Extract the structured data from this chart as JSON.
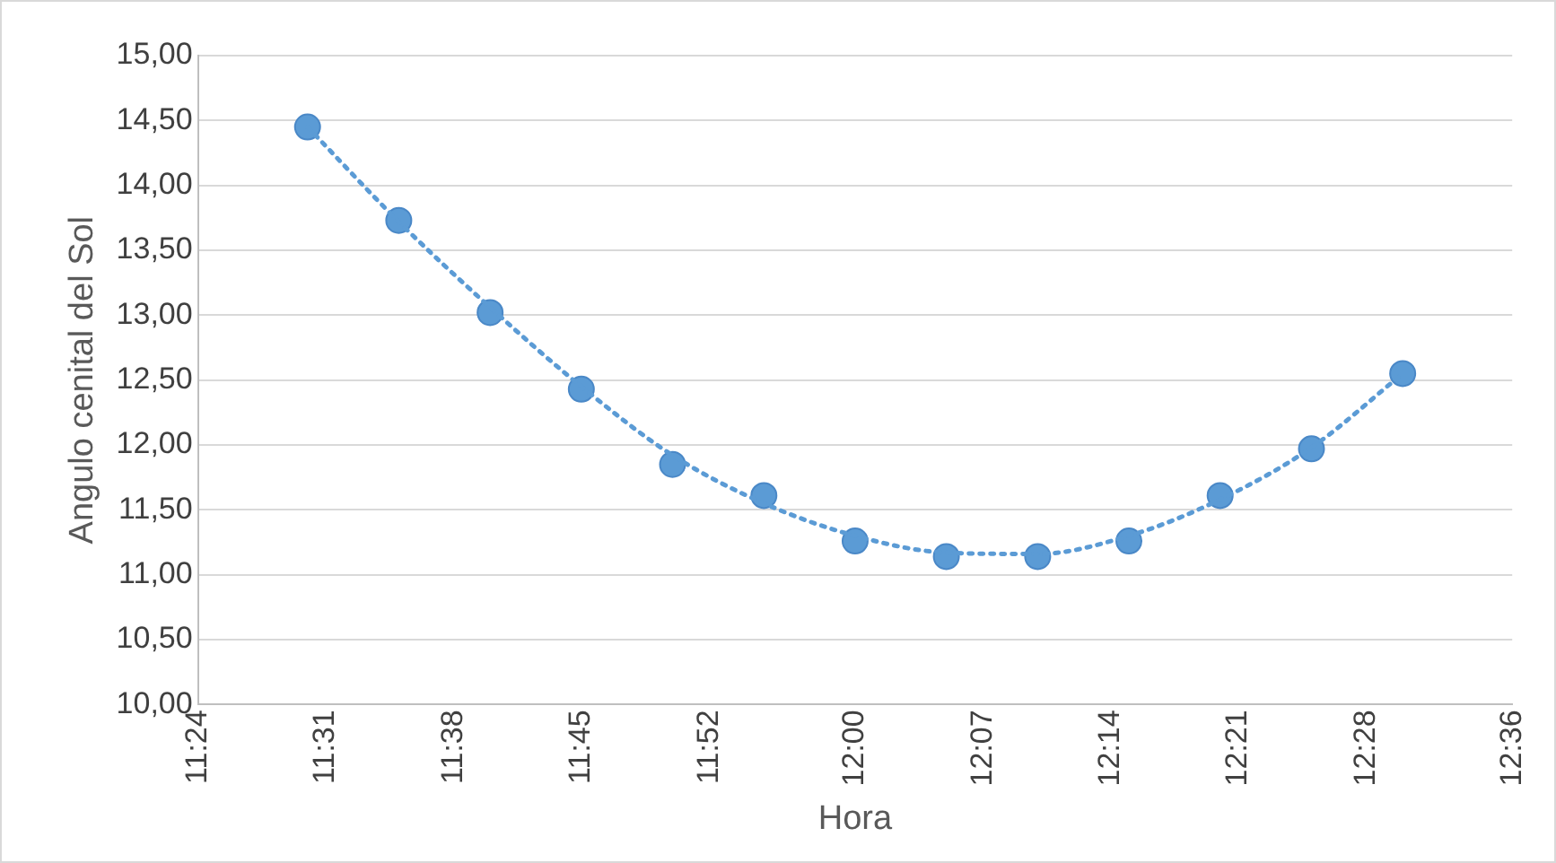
{
  "chart_data": {
    "type": "scatter",
    "xlabel": "Hora",
    "ylabel": "Angulo cenital del Sol",
    "xlim": [
      11.4,
      12.6
    ],
    "xticks": [
      {
        "value": 11.4,
        "label": "11:24"
      },
      {
        "value": 11.5167,
        "label": "11:31"
      },
      {
        "value": 11.6333,
        "label": "11:38"
      },
      {
        "value": 11.75,
        "label": "11:45"
      },
      {
        "value": 11.8667,
        "label": "11:52"
      },
      {
        "value": 12.0,
        "label": "12:00"
      },
      {
        "value": 12.1167,
        "label": "12:07"
      },
      {
        "value": 12.2333,
        "label": "12:14"
      },
      {
        "value": 12.35,
        "label": "12:21"
      },
      {
        "value": 12.4667,
        "label": "12:28"
      },
      {
        "value": 12.6,
        "label": "12:36"
      }
    ],
    "ylim": [
      10,
      15
    ],
    "yticks": [
      {
        "value": 10,
        "label": "10,00"
      },
      {
        "value": 10.5,
        "label": "10,50"
      },
      {
        "value": 11,
        "label": "11,00"
      },
      {
        "value": 11.5,
        "label": "11,50"
      },
      {
        "value": 12,
        "label": "12,00"
      },
      {
        "value": 12.5,
        "label": "12,50"
      },
      {
        "value": 13,
        "label": "13,00"
      },
      {
        "value": 13.5,
        "label": "13,50"
      },
      {
        "value": 14,
        "label": "14,00"
      },
      {
        "value": 14.5,
        "label": "14,50"
      },
      {
        "value": 15,
        "label": "15,00"
      }
    ],
    "grid": "y",
    "marker": "circle",
    "series": [
      {
        "type": "scatter",
        "color": "#5b9bd5",
        "x": [
          11.5,
          11.5833,
          11.6667,
          11.75,
          11.8333,
          11.9167,
          12.0,
          12.0833,
          12.1667,
          12.25,
          12.3333,
          12.4167,
          12.5
        ],
        "values": [
          14.45,
          13.73,
          13.02,
          12.43,
          11.85,
          11.61,
          11.26,
          11.14,
          11.14,
          11.26,
          11.61,
          11.97,
          12.55
        ]
      },
      {
        "type": "line",
        "color": "#5b9bd5",
        "line_style": "dotted",
        "marker": "none",
        "x": [
          11.5,
          11.5833,
          11.6667,
          11.75,
          11.8333,
          11.9167,
          12.0,
          12.0833,
          12.1667,
          12.25,
          12.3333,
          12.4167,
          12.5
        ],
        "values": [
          14.45,
          13.72,
          13.06,
          12.45,
          11.92,
          11.55,
          11.3,
          11.17,
          11.16,
          11.3,
          11.58,
          11.98,
          12.55
        ]
      }
    ]
  }
}
